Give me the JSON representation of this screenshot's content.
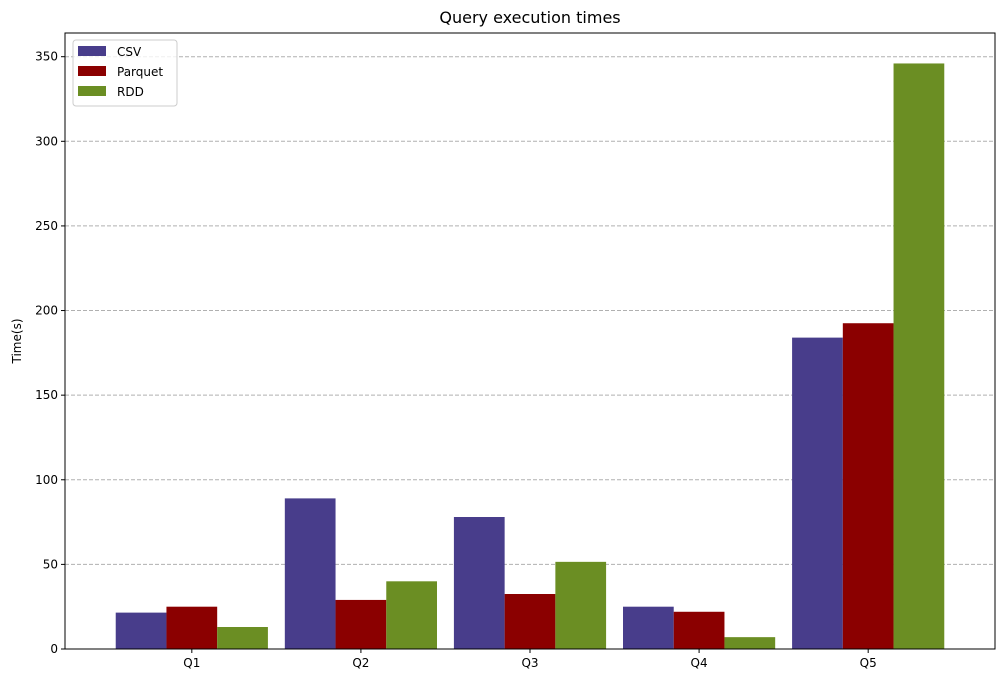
{
  "chart_data": {
    "type": "bar",
    "title": "Query execution times",
    "xlabel": "",
    "ylabel": "Time(s)",
    "categories": [
      "Q1",
      "Q2",
      "Q3",
      "Q4",
      "Q5"
    ],
    "series": [
      {
        "name": "CSV",
        "color": "#483D8B",
        "values": [
          21.5,
          89,
          78,
          25,
          184
        ]
      },
      {
        "name": "Parquet",
        "color": "#8B0000",
        "values": [
          25,
          29,
          32.5,
          22,
          192.5
        ]
      },
      {
        "name": "RDD",
        "color": "#6B8E23",
        "values": [
          13,
          40,
          51.5,
          7,
          346
        ]
      }
    ],
    "ylim": [
      0,
      364
    ],
    "yticks": [
      0,
      50,
      100,
      150,
      200,
      250,
      300,
      350
    ],
    "grid": {
      "axis": "y",
      "style": "dashed"
    },
    "legend": {
      "position": "upper-left"
    }
  }
}
